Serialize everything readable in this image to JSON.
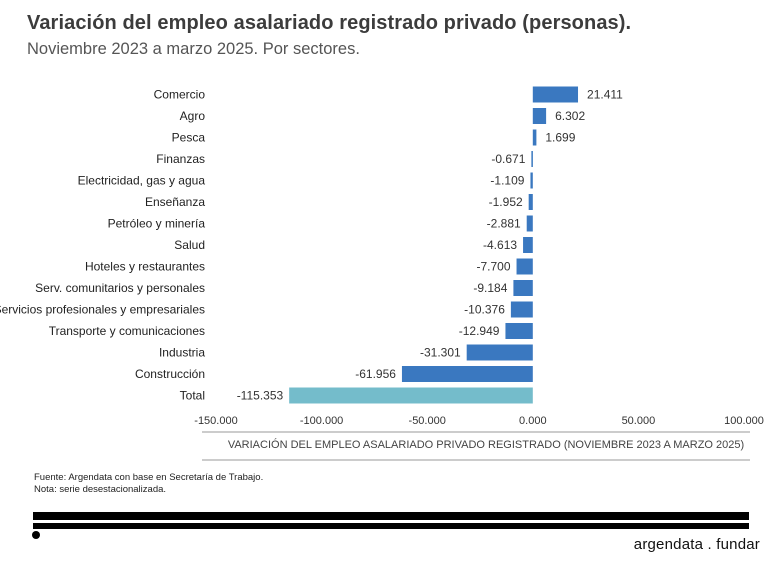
{
  "header": {
    "title": "Variación del empleo asalariado registrado privado (personas).",
    "subtitle": "Noviembre 2023 a marzo 2025. Por sectores."
  },
  "notes": {
    "source": "Fuente: Argendata con base en Secretaría de Trabajo.",
    "note": "Nota: serie desestacionalizada."
  },
  "brand": {
    "left": "argendata",
    "sep": ".",
    "right": "fundar"
  },
  "colors": {
    "bar": "#3a78c0",
    "total_bar": "#74bccb"
  },
  "chart_data": {
    "type": "bar",
    "orientation": "horizontal",
    "title": "Variación del empleo asalariado registrado privado (personas).",
    "subtitle": "Noviembre 2023 a marzo 2025. Por sectores.",
    "xlabel": "VARIACIÓN DEL EMPLEO ASALARIADO PRIVADO REGISTRADO (NOVIEMBRE 2023 A MARZO 2025)",
    "ylabel": "",
    "xlim": [
      -150000,
      100000
    ],
    "xticks": [
      -150000,
      -100000,
      -50000,
      0,
      50000,
      100000
    ],
    "xtick_labels": [
      "-150.000",
      "-100.000",
      "-50.000",
      "0.000",
      "50.000",
      "100.000"
    ],
    "categories": [
      "Comercio",
      "Agro",
      "Pesca",
      "Finanzas",
      "Electricidad, gas y agua",
      "Enseñanza",
      "Petróleo y minería",
      "Salud",
      "Hoteles y restaurantes",
      "Serv. comunitarios y personales",
      "Servicios profesionales y empresariales",
      "Transporte y comunicaciones",
      "Industria",
      "Construcción",
      "Total"
    ],
    "values": [
      21411,
      6302,
      1699,
      -671,
      -1109,
      -1952,
      -2881,
      -4613,
      -7700,
      -9184,
      -10376,
      -12949,
      -31301,
      -61956,
      -115353
    ],
    "value_labels": [
      "21.411",
      "6.302",
      "1.699",
      "-0.671",
      "-1.109",
      "-1.952",
      "-2.881",
      "-4.613",
      "-7.700",
      "-9.184",
      "-10.376",
      "-12.949",
      "-31.301",
      "-61.956",
      "-115.353"
    ],
    "grid": false,
    "legend": "none"
  }
}
